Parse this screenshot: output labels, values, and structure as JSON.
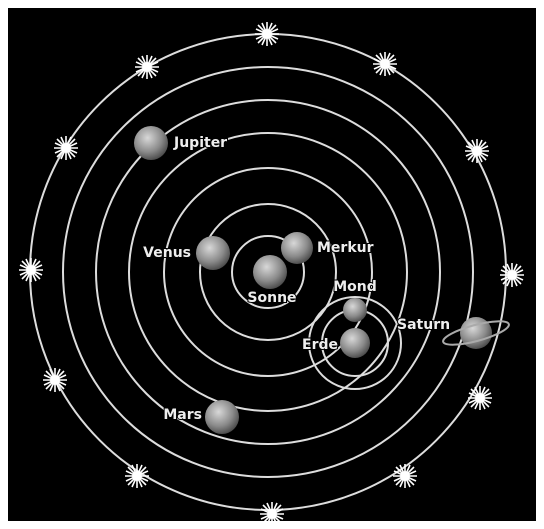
{
  "nodes": [
    {
      "label": "Jupiter"
    },
    {
      "label": "Venus"
    },
    {
      "label": "Merkur"
    },
    {
      "label": "Sonne"
    },
    {
      "label": "Mond"
    },
    {
      "label": "Saturn"
    },
    {
      "label": "Erde"
    },
    {
      "label": "Mars"
    }
  ]
}
